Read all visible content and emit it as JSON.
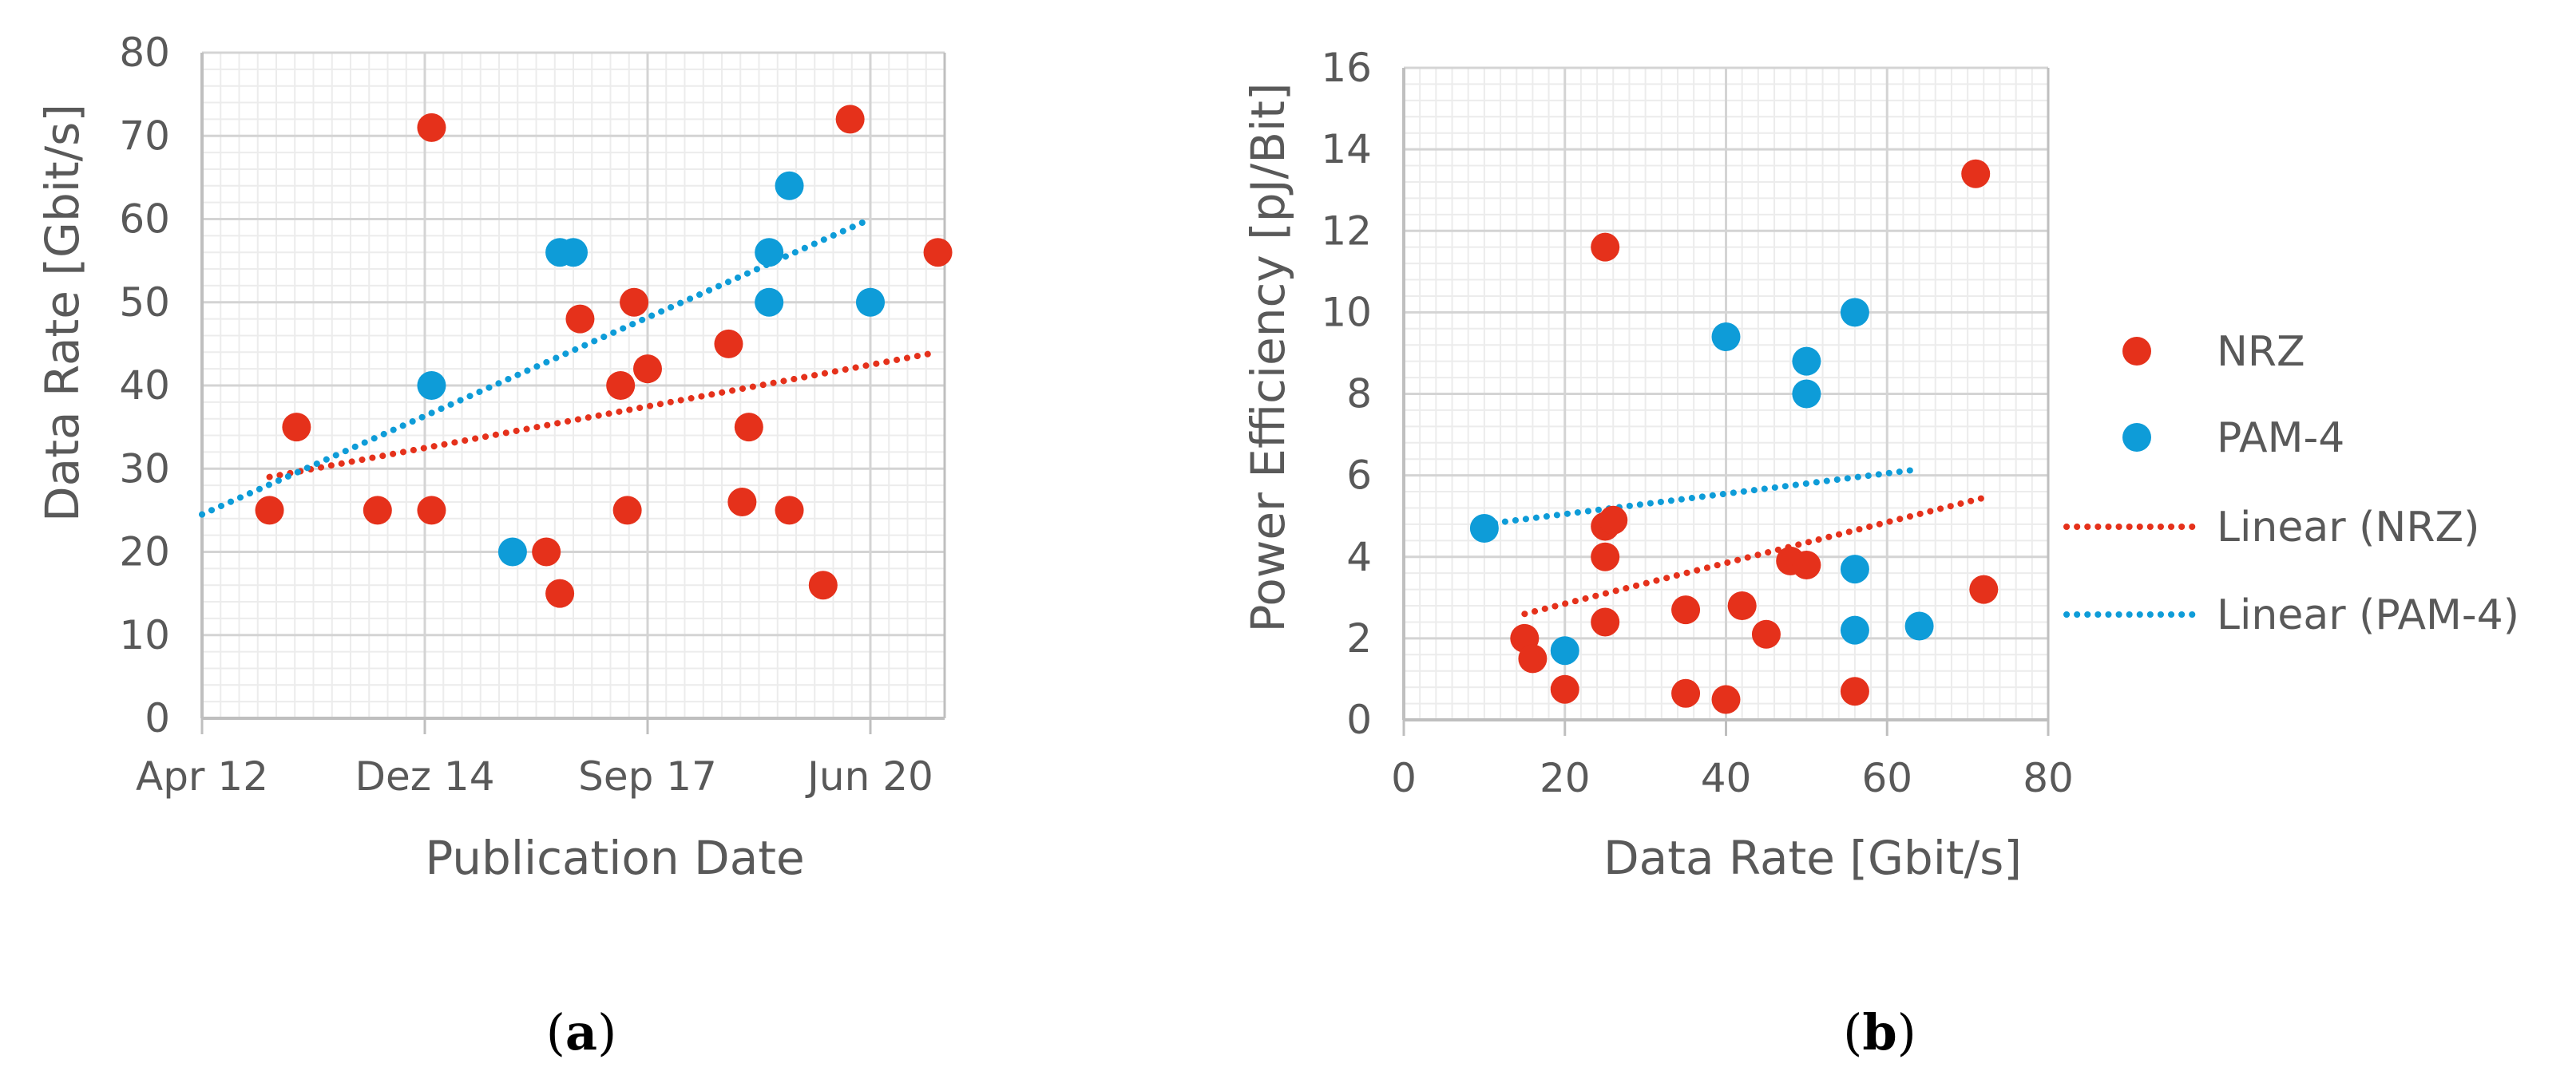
{
  "colors": {
    "nrz": "#E5311B",
    "pam4": "#0E9CD8",
    "grid_major": "#D4D4D4",
    "grid_minor": "#ECECEC",
    "axis": "#BFBFBF",
    "text": "#595959"
  },
  "chart_data": [
    {
      "id": "a",
      "type": "scatter",
      "caption_letter": "a",
      "xlabel": "Publication Date",
      "ylabel": "Data Rate [Gbit/s]",
      "xlim": [
        0,
        11
      ],
      "ylim": [
        0,
        80
      ],
      "grid": true,
      "x_ticks": [
        {
          "value": 0,
          "label": "Apr 12"
        },
        {
          "value": 3.3,
          "label": "Dez 14"
        },
        {
          "value": 6.6,
          "label": "Sep 17"
        },
        {
          "value": 9.9,
          "label": "Jun 20"
        }
      ],
      "y_ticks": [
        0,
        10,
        20,
        30,
        40,
        50,
        60,
        70,
        80
      ],
      "series": [
        {
          "name": "NRZ",
          "color_key": "nrz",
          "points": [
            [
              1.0,
              25
            ],
            [
              1.4,
              35
            ],
            [
              2.6,
              25
            ],
            [
              3.4,
              71
            ],
            [
              3.4,
              25
            ],
            [
              5.1,
              20
            ],
            [
              5.3,
              15
            ],
            [
              5.6,
              48
            ],
            [
              6.2,
              40
            ],
            [
              6.3,
              25
            ],
            [
              6.4,
              50
            ],
            [
              6.6,
              42
            ],
            [
              7.8,
              45
            ],
            [
              8.0,
              26
            ],
            [
              8.1,
              35
            ],
            [
              8.7,
              25
            ],
            [
              9.2,
              16
            ],
            [
              9.6,
              72
            ],
            [
              10.9,
              56
            ]
          ]
        },
        {
          "name": "PAM-4",
          "color_key": "pam4",
          "points": [
            [
              3.4,
              40
            ],
            [
              4.6,
              20
            ],
            [
              5.3,
              56
            ],
            [
              5.5,
              56
            ],
            [
              8.4,
              56
            ],
            [
              8.4,
              50
            ],
            [
              8.7,
              64
            ],
            [
              9.9,
              50
            ]
          ]
        }
      ],
      "trendlines": [
        {
          "name": "Linear (NRZ)",
          "color_key": "nrz",
          "from": [
            1.0,
            29
          ],
          "to": [
            10.9,
            44
          ]
        },
        {
          "name": "Linear (PAM-4)",
          "color_key": "pam4",
          "from": [
            0.0,
            24.5
          ],
          "to": [
            9.9,
            60
          ]
        }
      ]
    },
    {
      "id": "b",
      "type": "scatter",
      "caption_letter": "b",
      "xlabel": "Data Rate [Gbit/s]",
      "ylabel": "Power Efficiency [pJ/Bit]",
      "xlim": [
        0,
        80
      ],
      "ylim": [
        0,
        16
      ],
      "grid": true,
      "x_ticks": [
        {
          "value": 0,
          "label": "0"
        },
        {
          "value": 20,
          "label": "20"
        },
        {
          "value": 40,
          "label": "40"
        },
        {
          "value": 60,
          "label": "60"
        },
        {
          "value": 80,
          "label": "80"
        }
      ],
      "y_ticks": [
        0,
        2,
        4,
        6,
        8,
        10,
        12,
        14,
        16
      ],
      "series": [
        {
          "name": "NRZ",
          "color_key": "nrz",
          "points": [
            [
              15,
              2.0
            ],
            [
              16,
              1.5
            ],
            [
              20,
              0.75
            ],
            [
              25,
              11.6
            ],
            [
              25,
              4.75
            ],
            [
              26,
              4.9
            ],
            [
              25,
              4.0
            ],
            [
              25,
              2.4
            ],
            [
              35,
              2.7
            ],
            [
              35,
              0.65
            ],
            [
              40,
              0.5
            ],
            [
              42,
              2.8
            ],
            [
              45,
              2.1
            ],
            [
              48,
              3.9
            ],
            [
              50,
              3.8
            ],
            [
              56,
              0.7
            ],
            [
              71,
              13.4
            ],
            [
              72,
              3.2
            ]
          ]
        },
        {
          "name": "PAM-4",
          "color_key": "pam4",
          "points": [
            [
              10,
              4.7
            ],
            [
              20,
              1.7
            ],
            [
              40,
              9.4
            ],
            [
              50,
              8.8
            ],
            [
              50,
              8.0
            ],
            [
              56,
              10.0
            ],
            [
              56,
              3.7
            ],
            [
              56,
              2.2
            ],
            [
              64,
              2.3
            ]
          ]
        }
      ],
      "trendlines": [
        {
          "name": "Linear (NRZ)",
          "color_key": "nrz",
          "from": [
            15,
            2.6
          ],
          "to": [
            72,
            5.45
          ]
        },
        {
          "name": "Linear (PAM-4)",
          "color_key": "pam4",
          "from": [
            10,
            4.8
          ],
          "to": [
            64,
            6.15
          ]
        }
      ]
    }
  ],
  "legend": {
    "items": [
      {
        "label": "NRZ",
        "kind": "marker",
        "color_key": "nrz"
      },
      {
        "label": "PAM-4",
        "kind": "marker",
        "color_key": "pam4"
      },
      {
        "label": "Linear (NRZ)",
        "kind": "dotted-line",
        "color_key": "nrz"
      },
      {
        "label": "Linear (PAM-4)",
        "kind": "dotted-line",
        "color_key": "pam4"
      }
    ]
  }
}
